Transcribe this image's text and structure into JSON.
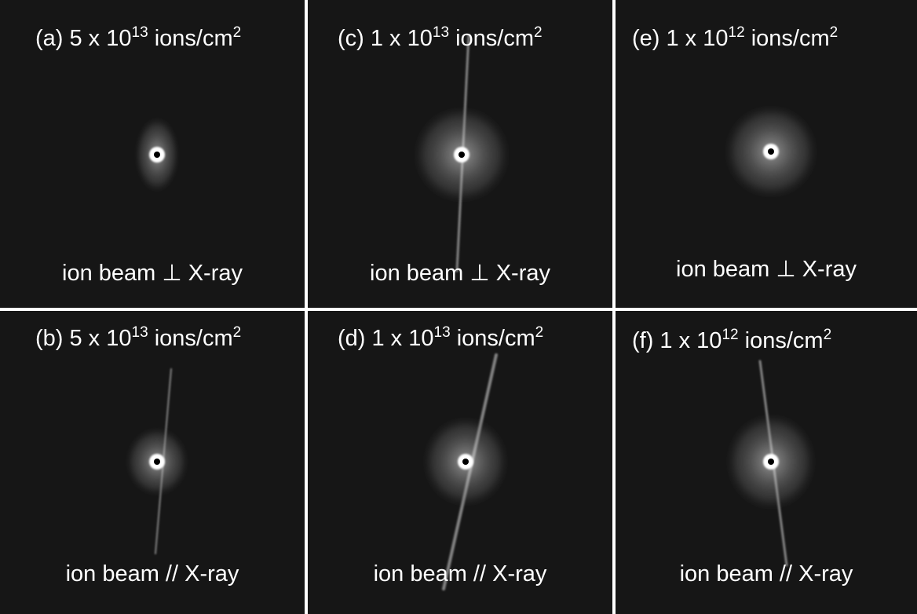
{
  "panels": [
    {
      "title": [
        "(a) 5 x 10",
        "13",
        " ions/cm",
        "2"
      ],
      "caption": "ion beam  ⊥ X-ray"
    },
    {
      "title": [
        "(c) 1 x 10",
        "13",
        " ions/cm",
        "2"
      ],
      "caption": "ion beam  ⊥ X-ray"
    },
    {
      "title": [
        "(e) 1 x 10",
        "12",
        " ions/cm",
        "2"
      ],
      "caption": "ion beam  ⊥ X-ray"
    },
    {
      "title": [
        "(b) 5 x 10",
        "13",
        " ions/cm",
        "2"
      ],
      "caption": "ion beam  // X-ray"
    },
    {
      "title": [
        "(d) 1 x 10",
        "13",
        " ions/cm",
        "2"
      ],
      "caption": "ion beam  // X-ray"
    },
    {
      "title": [
        "(f) 1 x 10",
        "12",
        " ions/cm",
        "2"
      ],
      "caption": "ion beam  // X-ray"
    }
  ]
}
